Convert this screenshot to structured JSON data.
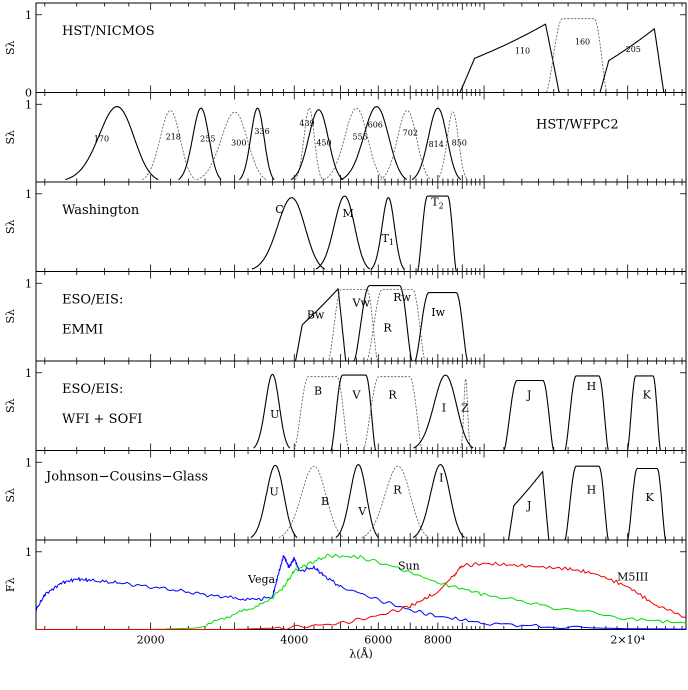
{
  "chart_data": {
    "type": "line",
    "xlabel": "λ(Å)",
    "xscale": "log",
    "xlim": [
      1150,
      26500
    ],
    "x_ticks": [
      {
        "value": 2000,
        "label": "2000"
      },
      {
        "value": 4000,
        "label": "4000"
      },
      {
        "value": 6000,
        "label": "6000"
      },
      {
        "value": 8000,
        "label": "8000"
      },
      {
        "value": 20000,
        "label": "2×10⁴"
      }
    ],
    "y_tick_labels": [
      "0",
      "1"
    ],
    "panels": [
      {
        "id": "nicmos",
        "title": [
          "HST/NICMOS"
        ],
        "ylabel": "Sλ",
        "ylim": [
          0,
          1.1
        ],
        "filters": [
          {
            "name": "110",
            "style": "solid",
            "center": 11500,
            "width": 5200,
            "peak": 0.88,
            "shape": "ramp",
            "label_x": 11600,
            "label_y": 0.5
          },
          {
            "name": "160",
            "style": "dotted",
            "center": 15800,
            "width": 4000,
            "peak": 0.95,
            "shape": "flat",
            "label_x": 15500,
            "label_y": 0.62
          },
          {
            "name": "205",
            "style": "solid",
            "center": 20500,
            "width": 6000,
            "peak": 0.82,
            "shape": "ramp",
            "label_x": 19800,
            "label_y": 0.52
          }
        ]
      },
      {
        "id": "wfpc2",
        "title": [
          "HST/WFPC2"
        ],
        "ylabel": "Sλ",
        "ylim": [
          0,
          1.1
        ],
        "filters": [
          {
            "name": "170",
            "style": "solid",
            "center": 1700,
            "width": 600,
            "peak": 0.97,
            "shape": "bell",
            "label_x": 1520,
            "label_y": 0.52
          },
          {
            "name": "218",
            "style": "dotted",
            "center": 2200,
            "width": 450,
            "peak": 0.92,
            "shape": "bell",
            "label_x": 2150,
            "label_y": 0.55
          },
          {
            "name": "255",
            "style": "solid",
            "center": 2550,
            "width": 420,
            "peak": 0.95,
            "shape": "bell",
            "label_x": 2540,
            "label_y": 0.52
          },
          {
            "name": "300",
            "style": "dotted",
            "center": 3000,
            "width": 800,
            "peak": 0.9,
            "shape": "bell",
            "label_x": 2950,
            "label_y": 0.47
          },
          {
            "name": "336",
            "style": "solid",
            "center": 3350,
            "width": 450,
            "peak": 0.95,
            "shape": "bell",
            "label_x": 3300,
            "label_y": 0.62
          },
          {
            "name": "439",
            "style": "dotted",
            "center": 4300,
            "width": 450,
            "peak": 0.95,
            "shape": "bell",
            "label_x": 4100,
            "label_y": 0.72
          },
          {
            "name": "450",
            "style": "solid",
            "center": 4500,
            "width": 900,
            "peak": 0.93,
            "shape": "bell",
            "label_x": 4450,
            "label_y": 0.47
          },
          {
            "name": "555",
            "style": "dotted",
            "center": 5400,
            "width": 1250,
            "peak": 0.95,
            "shape": "bell",
            "label_x": 5300,
            "label_y": 0.55
          },
          {
            "name": "606",
            "style": "solid",
            "center": 5950,
            "width": 1500,
            "peak": 0.97,
            "shape": "bell",
            "label_x": 5700,
            "label_y": 0.7
          },
          {
            "name": "702",
            "style": "dotted",
            "center": 6900,
            "width": 1350,
            "peak": 0.92,
            "shape": "bell",
            "label_x": 6750,
            "label_y": 0.6
          },
          {
            "name": "814",
            "style": "solid",
            "center": 8000,
            "width": 1500,
            "peak": 0.95,
            "shape": "bell",
            "label_x": 7650,
            "label_y": 0.45
          },
          {
            "name": "850",
            "style": "dotted",
            "center": 8600,
            "width": 1000,
            "peak": 0.9,
            "shape": "bell",
            "label_x": 8550,
            "label_y": 0.47
          }
        ]
      },
      {
        "id": "washington",
        "title": [
          "Washington"
        ],
        "ylabel": "Sλ",
        "ylim": [
          0,
          1.1
        ],
        "filters": [
          {
            "name": "C",
            "style": "solid",
            "center": 3950,
            "width": 1100,
            "peak": 0.95,
            "shape": "bell",
            "label_x": 3650,
            "label_y": 0.75
          },
          {
            "name": "M",
            "style": "solid",
            "center": 5100,
            "width": 1050,
            "peak": 0.97,
            "shape": "bell",
            "label_x": 5050,
            "label_y": 0.7
          },
          {
            "name": "T",
            "sub": "1",
            "style": "solid",
            "center": 6300,
            "width": 800,
            "peak": 0.95,
            "shape": "bell",
            "label_x": 6100,
            "label_y": 0.38
          },
          {
            "name": "T",
            "sub": "2",
            "style": "solid",
            "center": 8000,
            "width": 1300,
            "peak": 0.97,
            "shape": "flat",
            "label_x": 7750,
            "label_y": 0.85
          }
        ]
      },
      {
        "id": "emmi",
        "title": [
          "ESO/EIS:",
          "EMMI"
        ],
        "ylabel": "Sλ",
        "ylim": [
          0,
          1.1
        ],
        "filters": [
          {
            "name": "Bw",
            "style": "solid",
            "center": 4550,
            "width": 1050,
            "peak": 0.93,
            "shape": "ramp",
            "label_x": 4250,
            "label_y": 0.55
          },
          {
            "name": "Vw",
            "style": "dotted",
            "center": 5350,
            "width": 1100,
            "peak": 0.92,
            "shape": "flat",
            "label_x": 5300,
            "label_y": 0.7
          },
          {
            "name": "R",
            "style": "solid",
            "center": 6200,
            "width": 1500,
            "peak": 0.97,
            "shape": "flat",
            "label_x": 6150,
            "label_y": 0.38
          },
          {
            "name": "Rw",
            "style": "dotted",
            "center": 6600,
            "width": 1600,
            "peak": 0.92,
            "shape": "flat",
            "label_x": 6450,
            "label_y": 0.77
          },
          {
            "name": "Iw",
            "style": "solid",
            "center": 8200,
            "width": 1800,
            "peak": 0.88,
            "shape": "flat",
            "label_x": 7750,
            "label_y": 0.58
          }
        ]
      },
      {
        "id": "wfisofi",
        "title": [
          "ESO/EIS:",
          "WFI + SOFI"
        ],
        "ylabel": "Sλ",
        "ylim": [
          0,
          1.1
        ],
        "filters": [
          {
            "name": "U",
            "style": "solid",
            "center": 3600,
            "width": 500,
            "peak": 0.98,
            "shape": "bell",
            "label_x": 3560,
            "label_y": 0.42
          },
          {
            "name": "B",
            "style": "dotted",
            "center": 4600,
            "width": 1050,
            "peak": 0.95,
            "shape": "flat",
            "label_x": 4400,
            "label_y": 0.72
          },
          {
            "name": "V",
            "style": "solid",
            "center": 5350,
            "width": 1000,
            "peak": 0.97,
            "shape": "flat",
            "label_x": 5300,
            "label_y": 0.67
          },
          {
            "name": "R",
            "style": "dotted",
            "center": 6500,
            "width": 1600,
            "peak": 0.95,
            "shape": "flat",
            "label_x": 6300,
            "label_y": 0.67
          },
          {
            "name": "I",
            "style": "solid",
            "center": 8300,
            "width": 1900,
            "peak": 0.97,
            "shape": "bell",
            "label_x": 8150,
            "label_y": 0.5
          },
          {
            "name": "Z",
            "style": "dotted",
            "center": 9150,
            "width": 350,
            "peak": 0.92,
            "shape": "bell",
            "label_x": 8950,
            "label_y": 0.5
          },
          {
            "name": "J",
            "style": "solid",
            "center": 12500,
            "width": 2600,
            "peak": 0.9,
            "shape": "flat",
            "label_x": 12300,
            "label_y": 0.67
          },
          {
            "name": "H",
            "style": "solid",
            "center": 16500,
            "width": 3000,
            "peak": 0.96,
            "shape": "flat",
            "label_x": 16400,
            "label_y": 0.78
          },
          {
            "name": "K",
            "style": "solid",
            "center": 21700,
            "width": 3000,
            "peak": 0.96,
            "shape": "flat",
            "label_x": 21500,
            "label_y": 0.67
          }
        ]
      },
      {
        "id": "jcg",
        "title": [
          "Johnson−Cousins−Glass"
        ],
        "ylabel": "Sλ",
        "ylim": [
          0,
          1.1
        ],
        "filters": [
          {
            "name": "U",
            "style": "solid",
            "center": 3650,
            "width": 650,
            "peak": 0.96,
            "shape": "bell",
            "label_x": 3550,
            "label_y": 0.57
          },
          {
            "name": "B",
            "style": "dotted",
            "center": 4400,
            "width": 1100,
            "peak": 0.95,
            "shape": "bell",
            "label_x": 4550,
            "label_y": 0.45
          },
          {
            "name": "V",
            "style": "solid",
            "center": 5450,
            "width": 900,
            "peak": 0.97,
            "shape": "bell",
            "label_x": 5450,
            "label_y": 0.32
          },
          {
            "name": "R",
            "style": "dotted",
            "center": 6600,
            "width": 1700,
            "peak": 0.95,
            "shape": "bell",
            "label_x": 6450,
            "label_y": 0.6
          },
          {
            "name": "I",
            "style": "solid",
            "center": 8100,
            "width": 1600,
            "peak": 0.97,
            "shape": "bell",
            "label_x": 8050,
            "label_y": 0.75
          },
          {
            "name": "J",
            "style": "solid",
            "center": 12400,
            "width": 2300,
            "peak": 0.88,
            "shape": "ramp",
            "label_x": 12300,
            "label_y": 0.4
          },
          {
            "name": "H",
            "style": "solid",
            "center": 16500,
            "width": 3000,
            "peak": 0.95,
            "shape": "flat",
            "label_x": 16400,
            "label_y": 0.6
          },
          {
            "name": "K",
            "style": "solid",
            "center": 22000,
            "width": 3500,
            "peak": 0.92,
            "shape": "flat",
            "label_x": 21800,
            "label_y": 0.5
          }
        ]
      },
      {
        "id": "spectra",
        "ylabel": "Fλ",
        "ylim": [
          0,
          1.1
        ],
        "spectra": [
          {
            "name": "Vega",
            "color": "#0000ff",
            "label_x": 3200,
            "label_y": 0.6,
            "points": [
              [
                1150,
                0.25
              ],
              [
                1200,
                0.45
              ],
              [
                1300,
                0.6
              ],
              [
                1400,
                0.65
              ],
              [
                1500,
                0.63
              ],
              [
                1700,
                0.6
              ],
              [
                2000,
                0.55
              ],
              [
                2400,
                0.48
              ],
              [
                2800,
                0.42
              ],
              [
                3300,
                0.38
              ],
              [
                3600,
                0.42
              ],
              [
                3700,
                0.7
              ],
              [
                3800,
                0.95
              ],
              [
                3900,
                0.8
              ],
              [
                4000,
                0.92
              ],
              [
                4100,
                0.75
              ],
              [
                4400,
                0.8
              ],
              [
                4600,
                0.7
              ],
              [
                5000,
                0.55
              ],
              [
                6000,
                0.38
              ],
              [
                7000,
                0.25
              ],
              [
                8000,
                0.17
              ],
              [
                10000,
                0.08
              ],
              [
                14000,
                0.03
              ],
              [
                20000,
                0.01
              ],
              [
                26500,
                0.005
              ]
            ]
          },
          {
            "name": "Sun",
            "color": "#00dd00",
            "label_x": 6600,
            "label_y": 0.77,
            "points": [
              [
                1150,
                0
              ],
              [
                2000,
                0
              ],
              [
                2500,
                0.02
              ],
              [
                3000,
                0.2
              ],
              [
                3500,
                0.35
              ],
              [
                3800,
                0.55
              ],
              [
                4000,
                0.75
              ],
              [
                4300,
                0.85
              ],
              [
                4700,
                0.95
              ],
              [
                5500,
                0.93
              ],
              [
                6500,
                0.8
              ],
              [
                8000,
                0.6
              ],
              [
                10000,
                0.45
              ],
              [
                14000,
                0.28
              ],
              [
                20000,
                0.14
              ],
              [
                26500,
                0.08
              ]
            ]
          },
          {
            "name": "M5III",
            "color": "#ee0000",
            "label_x": 19000,
            "label_y": 0.63,
            "points": [
              [
                1150,
                0
              ],
              [
                3000,
                0
              ],
              [
                4000,
                0.03
              ],
              [
                5000,
                0.08
              ],
              [
                6000,
                0.18
              ],
              [
                7000,
                0.3
              ],
              [
                7800,
                0.45
              ],
              [
                8500,
                0.65
              ],
              [
                9000,
                0.82
              ],
              [
                10000,
                0.85
              ],
              [
                12000,
                0.82
              ],
              [
                15000,
                0.78
              ],
              [
                17000,
                0.72
              ],
              [
                20000,
                0.55
              ],
              [
                23000,
                0.3
              ],
              [
                26500,
                0.15
              ]
            ]
          }
        ]
      }
    ]
  }
}
